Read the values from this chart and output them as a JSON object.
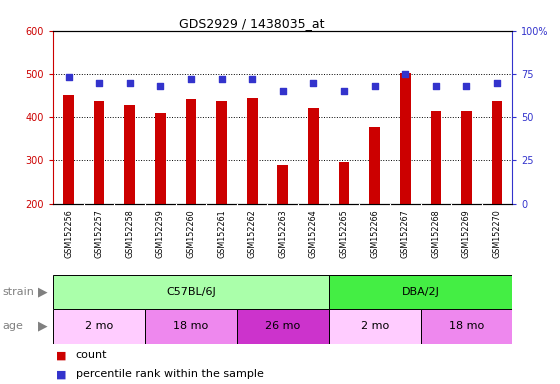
{
  "title": "GDS2929 / 1438035_at",
  "samples": [
    "GSM152256",
    "GSM152257",
    "GSM152258",
    "GSM152259",
    "GSM152260",
    "GSM152261",
    "GSM152262",
    "GSM152263",
    "GSM152264",
    "GSM152265",
    "GSM152266",
    "GSM152267",
    "GSM152268",
    "GSM152269",
    "GSM152270"
  ],
  "counts": [
    452,
    437,
    428,
    410,
    442,
    437,
    445,
    290,
    422,
    295,
    378,
    502,
    415,
    415,
    437
  ],
  "percentiles": [
    73,
    70,
    70,
    68,
    72,
    72,
    72,
    65,
    70,
    65,
    68,
    75,
    68,
    68,
    70
  ],
  "ylim_left": [
    200,
    600
  ],
  "ylim_right": [
    0,
    100
  ],
  "yticks_left": [
    200,
    300,
    400,
    500,
    600
  ],
  "yticks_right": [
    0,
    25,
    50,
    75,
    100
  ],
  "bar_color": "#cc0000",
  "dot_color": "#3333cc",
  "strain_groups": [
    {
      "label": "C57BL/6J",
      "start": 0,
      "end": 9,
      "color": "#aaffaa"
    },
    {
      "label": "DBA/2J",
      "start": 9,
      "end": 15,
      "color": "#44ee44"
    }
  ],
  "age_groups": [
    {
      "label": "2 mo",
      "start": 0,
      "end": 3,
      "color": "#ffccff"
    },
    {
      "label": "18 mo",
      "start": 3,
      "end": 6,
      "color": "#ff88ff"
    },
    {
      "label": "26 mo",
      "start": 6,
      "end": 9,
      "color": "#dd44dd"
    },
    {
      "label": "2 mo",
      "start": 9,
      "end": 12,
      "color": "#ffccff"
    },
    {
      "label": "18 mo",
      "start": 12,
      "end": 15,
      "color": "#ff88ff"
    }
  ],
  "strain_label": "strain",
  "age_label": "age",
  "legend_count_label": "count",
  "legend_pct_label": "percentile rank within the sample",
  "background_color": "#ffffff",
  "tick_area_bg": "#cccccc",
  "grid_color": "#000000"
}
